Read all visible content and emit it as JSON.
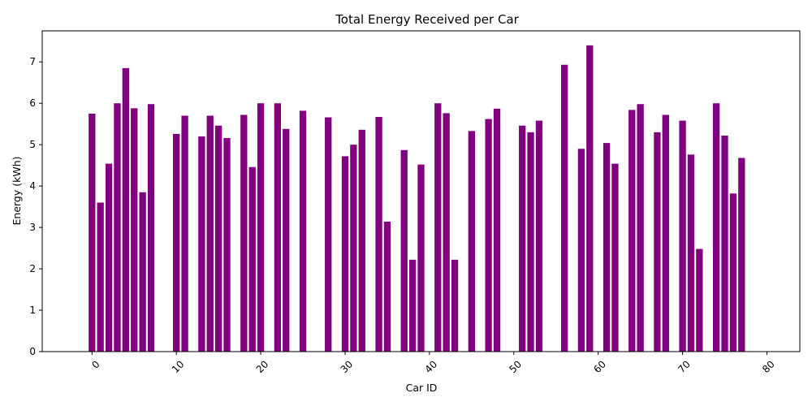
{
  "chart_data": {
    "type": "bar",
    "title": "Total Energy Received per Car",
    "xlabel": "Car ID",
    "ylabel": "Energy (kWh)",
    "xlim": [
      -5.9,
      83.9
    ],
    "ylim": [
      0,
      7.75
    ],
    "xticks": [
      "0",
      "10",
      "20",
      "30",
      "40",
      "50",
      "60",
      "70",
      "80"
    ],
    "yticks": [
      "0",
      "1",
      "2",
      "3",
      "4",
      "5",
      "6",
      "7"
    ],
    "xtick_rotation": 45,
    "bar_color": "#800080",
    "grid": false,
    "x": [
      0,
      1,
      2,
      3,
      4,
      5,
      6,
      7,
      10,
      11,
      13,
      14,
      15,
      16,
      18,
      19,
      20,
      22,
      23,
      25,
      28,
      30,
      31,
      32,
      34,
      35,
      37,
      38,
      39,
      41,
      42,
      43,
      45,
      47,
      48,
      51,
      52,
      53,
      56,
      58,
      59,
      61,
      62,
      64,
      65,
      67,
      68,
      70,
      71,
      72,
      74,
      75,
      76,
      77
    ],
    "values": [
      5.75,
      3.6,
      4.54,
      6.0,
      6.85,
      5.88,
      3.85,
      5.98,
      5.26,
      5.7,
      5.2,
      5.7,
      5.46,
      5.16,
      5.72,
      4.46,
      6.0,
      6.0,
      5.38,
      5.82,
      5.66,
      4.72,
      5.0,
      5.36,
      5.67,
      3.14,
      4.87,
      2.22,
      4.52,
      6.0,
      5.76,
      2.22,
      5.33,
      5.62,
      5.87,
      5.46,
      5.3,
      5.58,
      6.93,
      4.9,
      7.4,
      5.04,
      4.54,
      5.84,
      5.98,
      5.3,
      5.72,
      5.58,
      4.76,
      2.48,
      6.0,
      5.22,
      3.82,
      4.68
    ]
  }
}
